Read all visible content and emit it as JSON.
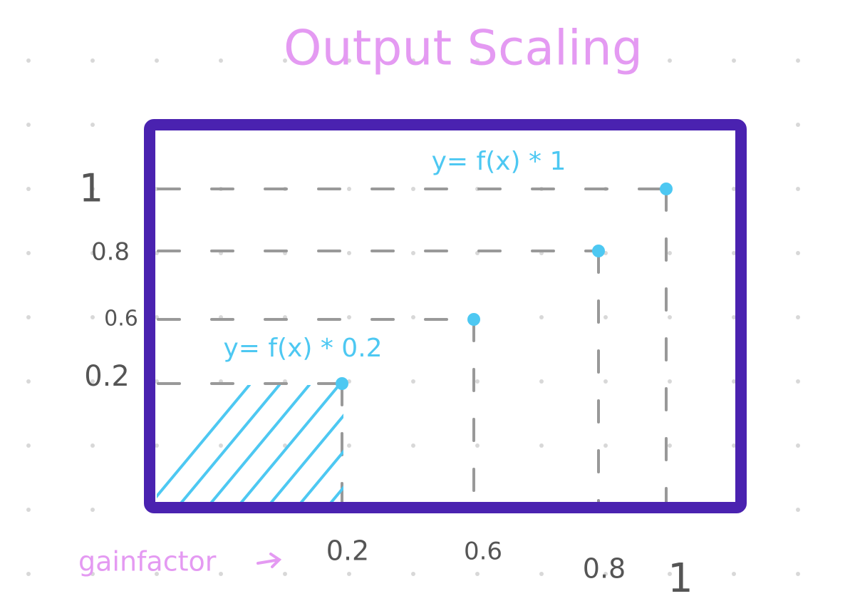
{
  "title": "Output Scaling",
  "y_labels": [
    "1",
    "0.8",
    "0.6",
    "0.2"
  ],
  "x_axis_label": "gainfactor",
  "x_labels": [
    "0.2",
    "0.6",
    "0.8",
    "1"
  ],
  "annotations": [
    "y= f(x) * 1",
    "y= f(x) * 0.2"
  ]
}
